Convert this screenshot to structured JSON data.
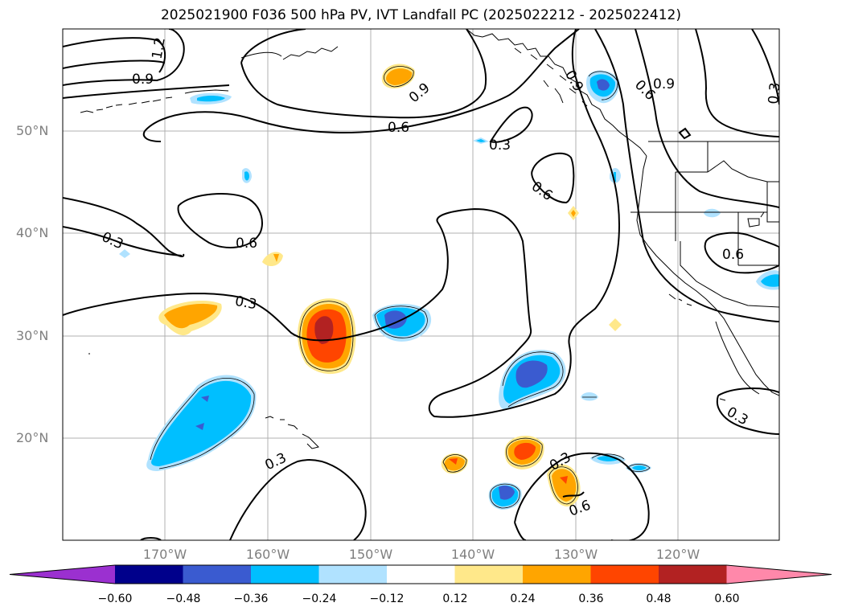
{
  "title": "2025021900 F036 500 hPa PV, IVT Landfall PC (2025022212 - 2025022412)",
  "latitude_labels": [
    "50°N",
    "40°N",
    "30°N",
    "20°N"
  ],
  "longitude_labels": [
    "170°W",
    "160°W",
    "150°W",
    "140°W",
    "130°W",
    "120°W"
  ],
  "colorbar": {
    "ticks": [
      "−0.60",
      "−0.48",
      "−0.36",
      "−0.24",
      "−0.12",
      "0.12",
      "0.24",
      "0.36",
      "0.48",
      "0.60"
    ],
    "colors": [
      "#9b30d0",
      "#00008b",
      "#3a5bd0",
      "#00bfff",
      "#b0e2ff",
      "#ffffff",
      "#ffe88a",
      "#ffa500",
      "#ff4500",
      "#b22222",
      "#ff88aa"
    ]
  },
  "contour_labels": [
    "1.2",
    "0.9",
    "0.9",
    "0.9",
    "0.6",
    "0.6",
    "0.3",
    "0.6",
    "0.3",
    "0.6",
    "0.9",
    "0.3",
    "0.6",
    "0.3",
    "0.3",
    "0.3",
    "0.3",
    "0.6"
  ]
}
